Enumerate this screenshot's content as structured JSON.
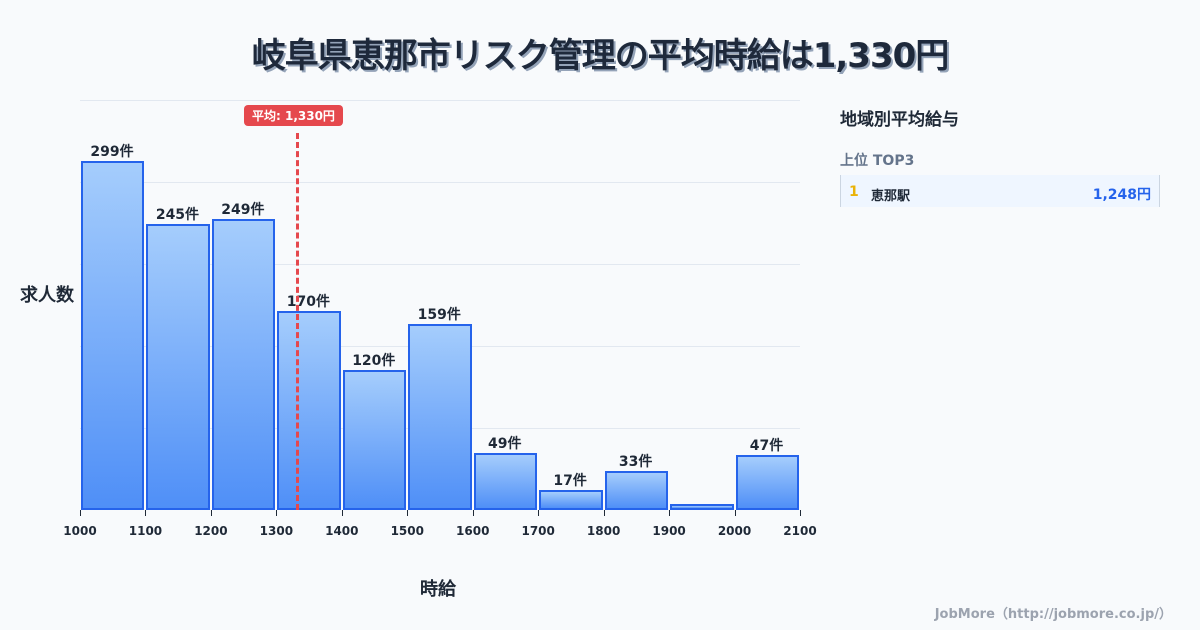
{
  "title": "岐阜県恵那市リスク管理の平均時給は1,330円",
  "average_badge": "平均: 1,330円",
  "sidebar": {
    "title": "地域別平均給与",
    "subtitle": "上位 TOP3",
    "ranking": [
      {
        "rank": "1",
        "name": "恵那駅",
        "value": "1,248円"
      }
    ]
  },
  "footer": "JobMore（http://jobmore.co.jp/）",
  "colors": {
    "bar_border": "#2563eb",
    "bar_top": "#a5cdfc",
    "bar_bottom": "#4f8ff7",
    "average_line": "#e5484d",
    "rank_number": "#eab308",
    "rank_value": "#2563eb"
  },
  "chart_data": {
    "type": "bar",
    "title": "岐阜県恵那市リスク管理の平均時給は1,330円",
    "xlabel": "時給",
    "ylabel": "求人数",
    "x_ticks": [
      "1000",
      "1100",
      "1200",
      "1300",
      "1400",
      "1500",
      "1600",
      "1700",
      "1800",
      "1900",
      "2000",
      "2100"
    ],
    "categories": [
      "1000-1100",
      "1100-1200",
      "1200-1300",
      "1300-1400",
      "1400-1500",
      "1500-1600",
      "1600-1700",
      "1700-1800",
      "1800-1900",
      "1900-2000",
      "2000-2100"
    ],
    "values": [
      299,
      245,
      249,
      170,
      120,
      159,
      49,
      17,
      33,
      5,
      47
    ],
    "labels": [
      "299件",
      "245件",
      "249件",
      "170件",
      "120件",
      "159件",
      "49件",
      "17件",
      "33件",
      "",
      "47件"
    ],
    "average": 1330,
    "average_label": "平均: 1,330円",
    "xlim": [
      1000,
      2100
    ],
    "ylim": [
      0,
      351
    ],
    "grid": true
  }
}
